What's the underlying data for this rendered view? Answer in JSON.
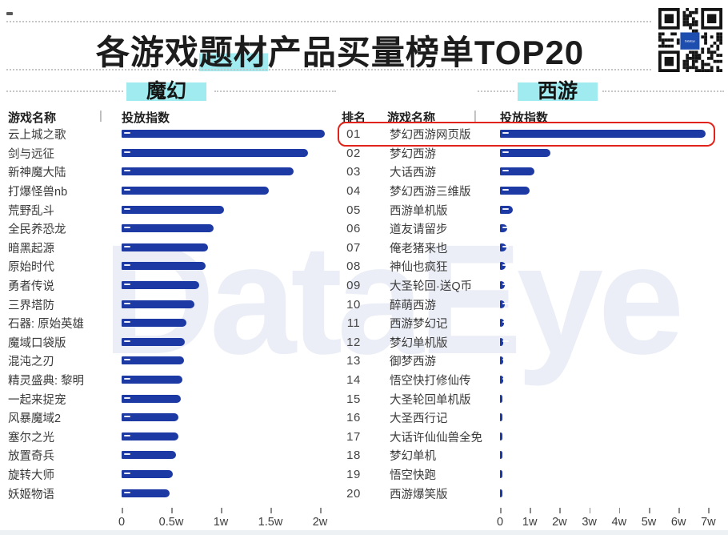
{
  "header": {
    "title_prefix": "各游戏",
    "title_highlight": "题材",
    "title_suffix": "产品买量榜单TOP20",
    "qr_label": "DataEye"
  },
  "ui": {
    "separator": "|"
  },
  "watermark": "DataEye",
  "colors": {
    "bar": "#1d39a3",
    "cyan_highlight": "#9febf0",
    "red_highlight_box": "#e0241b",
    "title_text": "#1c1c1c",
    "watermark": "rgba(36,66,160,0.09)"
  },
  "chart_data": [
    {
      "type": "bar",
      "orientation": "horizontal",
      "section": "魔幻",
      "name_label": "游戏名称",
      "value_label": "投放指数",
      "unit": "w",
      "xlim": [
        0,
        2.3
      ],
      "grid": false,
      "categories": [
        "云上城之歌",
        "剑与远征",
        "新神魔大陆",
        "打爆怪兽nb",
        "荒野乱斗",
        "全民养恐龙",
        "暗黑起源",
        "原始时代",
        "勇者传说",
        "三界塔防",
        "石器: 原始英雄",
        "魔域口袋版",
        "混沌之刃",
        "精灵盛典: 黎明",
        "一起来捉宠",
        "风暴魔域2",
        "塞尔之光",
        "放置奇兵",
        "旋转大师",
        "妖姬物语"
      ],
      "values": [
        2.05,
        1.88,
        1.73,
        1.48,
        1.03,
        0.93,
        0.87,
        0.85,
        0.78,
        0.73,
        0.65,
        0.64,
        0.63,
        0.61,
        0.6,
        0.57,
        0.57,
        0.55,
        0.52,
        0.48
      ],
      "ticks": [
        {
          "v": 0,
          "label": "0"
        },
        {
          "v": 0.5,
          "label": "0.5w"
        },
        {
          "v": 1,
          "label": "1w"
        },
        {
          "v": 1.5,
          "label": "1.5w"
        },
        {
          "v": 2,
          "label": "2w"
        }
      ]
    },
    {
      "type": "bar",
      "orientation": "horizontal",
      "section": "西游",
      "rank_label": "排名",
      "name_label": "游戏名称",
      "value_label": "投放指数",
      "unit": "w",
      "xlim": [
        0,
        7.3
      ],
      "grid": false,
      "highlighted_rank": "01",
      "ranks": [
        "01",
        "02",
        "03",
        "04",
        "05",
        "06",
        "07",
        "08",
        "09",
        "10",
        "11",
        "12",
        "13",
        "14",
        "15",
        "16",
        "17",
        "18",
        "19",
        "20"
      ],
      "categories": [
        "梦幻西游网页版",
        "梦幻西游",
        "大话西游",
        "梦幻西游三维版",
        "西游单机版",
        "道友请留步",
        "俺老猪来也",
        "神仙也疯狂",
        "大圣轮回·送Q币",
        "醉萌西游",
        "西游梦幻记",
        "梦幻单机版",
        "御梦西游",
        "悟空快打修仙传",
        "大圣轮回单机版",
        "大圣西行记",
        "大话许仙仙兽全免",
        "梦幻单机",
        "悟空快跑",
        "西游爆笑版"
      ],
      "values": [
        6.9,
        1.7,
        1.15,
        1.0,
        0.43,
        0.25,
        0.22,
        0.2,
        0.17,
        0.15,
        0.13,
        0.12,
        0.11,
        0.1,
        0.09,
        0.09,
        0.08,
        0.07,
        0.06,
        0.05
      ],
      "ticks": [
        {
          "v": 0,
          "label": "0"
        },
        {
          "v": 1,
          "label": "1w"
        },
        {
          "v": 2,
          "label": "2w"
        },
        {
          "v": 3,
          "label": "3w"
        },
        {
          "v": 4,
          "label": "4w"
        },
        {
          "v": 5,
          "label": "5w"
        },
        {
          "v": 6,
          "label": "6w"
        },
        {
          "v": 7,
          "label": "7w"
        }
      ]
    }
  ]
}
